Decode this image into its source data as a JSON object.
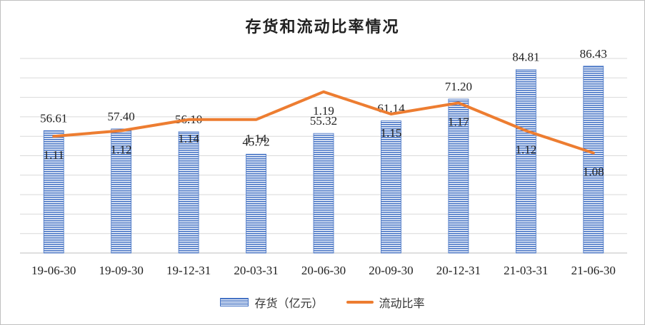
{
  "chart_data": {
    "type": "bar",
    "title": "存货和流动比率情况",
    "categories": [
      "19-06-30",
      "19-09-30",
      "19-12-31",
      "20-03-31",
      "20-06-30",
      "20-09-30",
      "20-12-31",
      "21-03-31",
      "21-06-30"
    ],
    "series": [
      {
        "name": "存货（亿元）",
        "type": "bar",
        "color": "#4472c4",
        "values": [
          56.61,
          57.4,
          56.1,
          45.72,
          55.32,
          61.14,
          71.2,
          84.81,
          86.43
        ],
        "labels": [
          "56.61",
          "57.40",
          "56.10",
          "45.72",
          "55.32",
          "61.14",
          "71.20",
          "84.81",
          "86.43"
        ]
      },
      {
        "name": "流动比率",
        "type": "line",
        "color": "#ed7d31",
        "values": [
          1.11,
          1.12,
          1.14,
          1.14,
          1.19,
          1.15,
          1.17,
          1.12,
          1.08
        ],
        "labels": [
          "1.11",
          "1.12",
          "1.14",
          "1.14",
          "1.19",
          "1.15",
          "1.17",
          "1.12",
          "1.08"
        ]
      }
    ],
    "ylim_bar": [
      0,
      90
    ],
    "ylim_line": [
      0.9,
      1.25
    ],
    "grid": true,
    "legend_position": "bottom"
  }
}
